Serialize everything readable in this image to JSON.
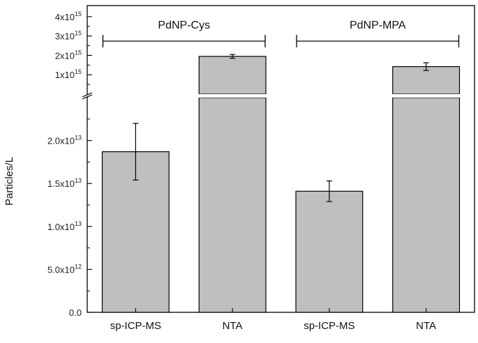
{
  "chart_data": {
    "type": "bar",
    "ylabel": "Particles/L",
    "categories": [
      "sp-ICP-MS",
      "NTA",
      "sp-ICP-MS",
      "NTA"
    ],
    "groups": [
      {
        "label": "PdNP-Cys",
        "categories": [
          0,
          1
        ]
      },
      {
        "label": "PdNP-MPA",
        "categories": [
          2,
          3
        ]
      }
    ],
    "values": [
      18700000000000.0,
      1950000000000000.0,
      14100000000000.0,
      1420000000000000.0
    ],
    "errors": [
      3300000000000.0,
      100000000000000.0,
      1200000000000.0,
      200000000000000.0
    ],
    "y_axis_broken": true,
    "lower_ylim": [
      0,
      25000000000000.0
    ],
    "upper_ylim": [
      0,
      4500000000000000.0
    ],
    "lower_ticks": [
      {
        "value": 0,
        "mantissa": "0.0",
        "exp": ""
      },
      {
        "value": 5000000000000.0,
        "mantissa": "5.0x10",
        "exp": "12"
      },
      {
        "value": 10000000000000.0,
        "mantissa": "1.0x10",
        "exp": "13"
      },
      {
        "value": 15000000000000.0,
        "mantissa": "1.5x10",
        "exp": "13"
      },
      {
        "value": 20000000000000.0,
        "mantissa": "2.0x10",
        "exp": "13"
      }
    ],
    "upper_ticks": [
      {
        "value": 1000000000000000.0,
        "mantissa": "1x10",
        "exp": "15"
      },
      {
        "value": 2000000000000000.0,
        "mantissa": "2x10",
        "exp": "15"
      },
      {
        "value": 3000000000000000.0,
        "mantissa": "3x10",
        "exp": "15"
      },
      {
        "value": 4000000000000000.0,
        "mantissa": "4x10",
        "exp": "15"
      }
    ],
    "bar_color": "#bfbfbf"
  }
}
